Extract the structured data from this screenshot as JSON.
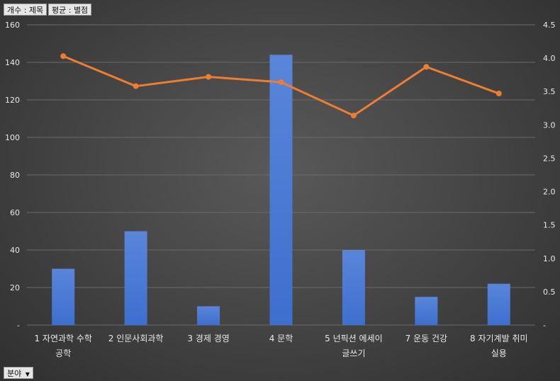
{
  "field_buttons": {
    "count": "개수 : 제목",
    "average": "평균 : 별점",
    "category": "분야",
    "category_arrow": "▼"
  },
  "colors": {
    "bar": "#3d6fcf",
    "line": "#ed7d31",
    "grid": "#6a6a6a",
    "text": "#e8e8e8"
  },
  "chart_data": {
    "type": "bar",
    "categories": [
      [
        "1 자연과학 수학",
        "공학"
      ],
      [
        "2 인문사회과학"
      ],
      [
        "3 경제 경영"
      ],
      [
        "4 문학"
      ],
      [
        "5 넌픽션 에세이",
        "글쓰기"
      ],
      [
        "7 운동 건강"
      ],
      [
        "8 자기계발 취미",
        "실용"
      ]
    ],
    "series": [
      {
        "type": "bar",
        "axis": "left",
        "values": [
          30,
          50,
          10,
          144,
          40,
          15,
          22
        ]
      },
      {
        "type": "line",
        "axis": "right",
        "values": [
          4.03,
          3.58,
          3.72,
          3.64,
          3.14,
          3.87,
          3.47
        ]
      }
    ],
    "ylim": [
      0,
      160
    ],
    "y_ticks": [
      "-",
      "20",
      "40",
      "60",
      "80",
      "100",
      "120",
      "140",
      "160"
    ],
    "y2lim": [
      0,
      4.5
    ],
    "y2_ticks": [
      "-",
      "0.5",
      "1.0",
      "1.5",
      "2.0",
      "2.5",
      "3.0",
      "3.5",
      "4.0",
      "4.5"
    ],
    "grid": true
  }
}
